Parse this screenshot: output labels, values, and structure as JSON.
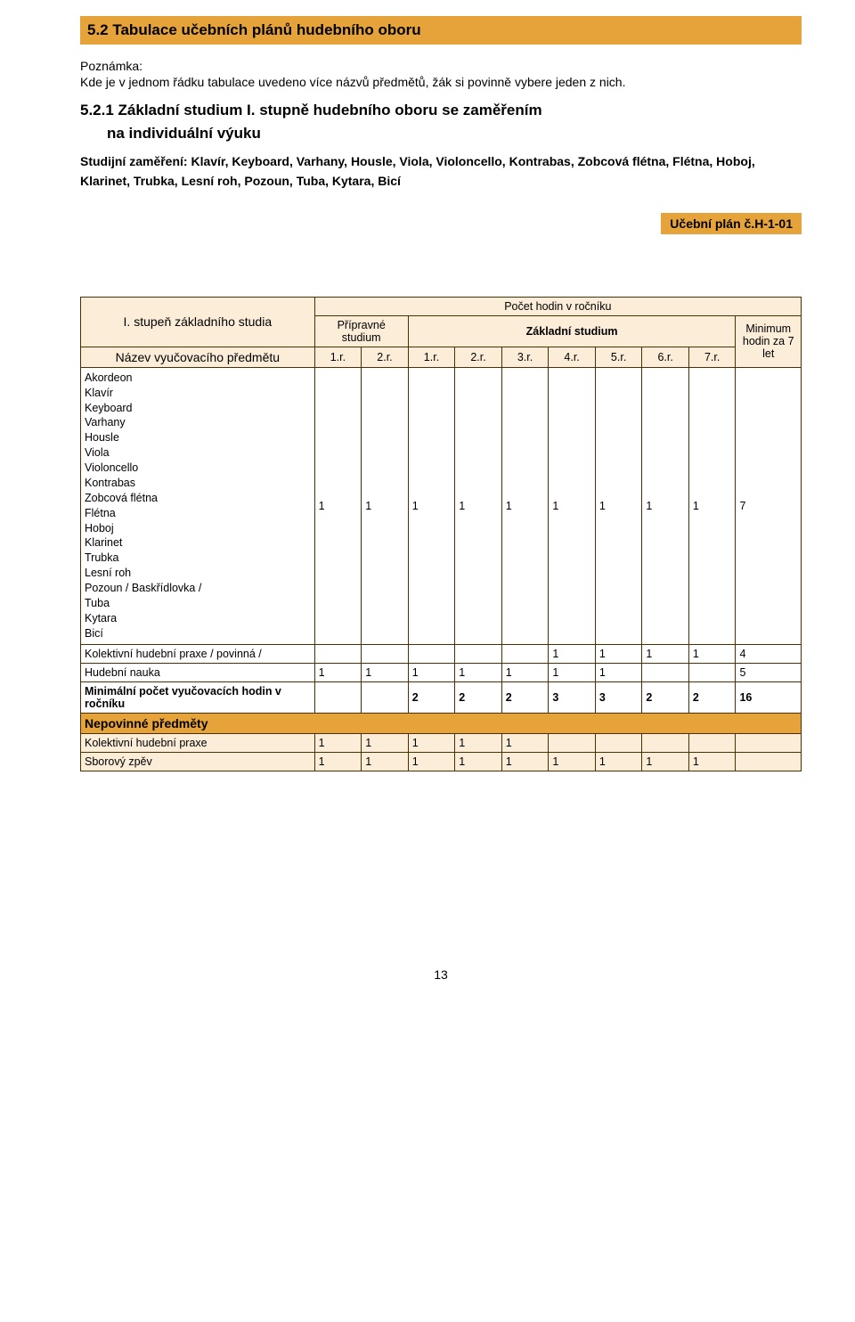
{
  "colors": {
    "accent": "#e5a339",
    "light": "#fcedd8",
    "border": "#4a2f00",
    "text": "#000000"
  },
  "header": "5.2   Tabulace učebních plánů hudebního oboru",
  "note_label": "Poznámka:",
  "note_text": "Kde je v jednom řádku tabulace uvedeno více názvů předmětů, žák si povinně vybere jeden z nich.",
  "subheading_a": "5.2.1 Základní  studium  I.  stupně  hudebního  oboru  se  zaměřením",
  "subheading_b": "na individuální výuku",
  "study_focus": "Studijní zaměření: Klavír, Keyboard, Varhany, Housle, Viola, Violoncello, Kontrabas, Zobcová flétna, Flétna, Hoboj, Klarinet, Trubka, Lesní roh, Pozoun, Tuba, Kytara,  Bicí",
  "plan_badge": "Učební plán č.H-1-01",
  "table": {
    "top_header": "Počet hodin v ročníku",
    "left_title": "I. stupeň základního studia",
    "left_subtitle": "Název vyučovacího předmětu",
    "prep_label": "Přípravné studium",
    "zaklad_label": "Základní studium",
    "min_label": "Minimum hodin za 7 let",
    "year_cols": [
      "1.r.",
      "2.r.",
      "1.r.",
      "2.r.",
      "3.r.",
      "4.r.",
      "5.r.",
      "6.r.",
      "7.r."
    ],
    "instruments": "Akordeon\nKlavír\nKeyboard\nVarhany\nHousle\nViola\nVioloncello\nKontrabas\nZobcová flétna\nFlétna\nHoboj\nKlarinet\nTrubka\nLesní roh\nPozoun / Baskřídlovka /\nTuba\nKytara\nBicí",
    "instr_vals": [
      "1",
      "1",
      "1",
      "1",
      "1",
      "1",
      "1",
      "1",
      "1",
      "7"
    ],
    "rows": [
      {
        "label": "Kolektivní hudební praxe / povinná /",
        "vals": [
          "",
          "",
          "",
          "",
          "",
          "1",
          "1",
          "1",
          "1",
          "4"
        ]
      },
      {
        "label": "Hudební nauka",
        "vals": [
          "1",
          "1",
          "1",
          "1",
          "1",
          "1",
          "1",
          "",
          "",
          "5"
        ]
      },
      {
        "label": "Minimální počet vyučovacích hodin v ročníku",
        "vals": [
          "",
          "",
          "2",
          "2",
          "2",
          "3",
          "3",
          "2",
          "2",
          "16"
        ],
        "bold": true
      }
    ],
    "section_label": "Nepovinné předměty",
    "optional": [
      {
        "label": "Kolektivní hudební praxe",
        "vals": [
          "1",
          "1",
          "1",
          "1",
          "1",
          "",
          "",
          "",
          "",
          ""
        ]
      },
      {
        "label": "Sborový zpěv",
        "vals": [
          "1",
          "1",
          "1",
          "1",
          "1",
          "1",
          "1",
          "1",
          "1",
          ""
        ]
      }
    ]
  },
  "page_number": "13"
}
